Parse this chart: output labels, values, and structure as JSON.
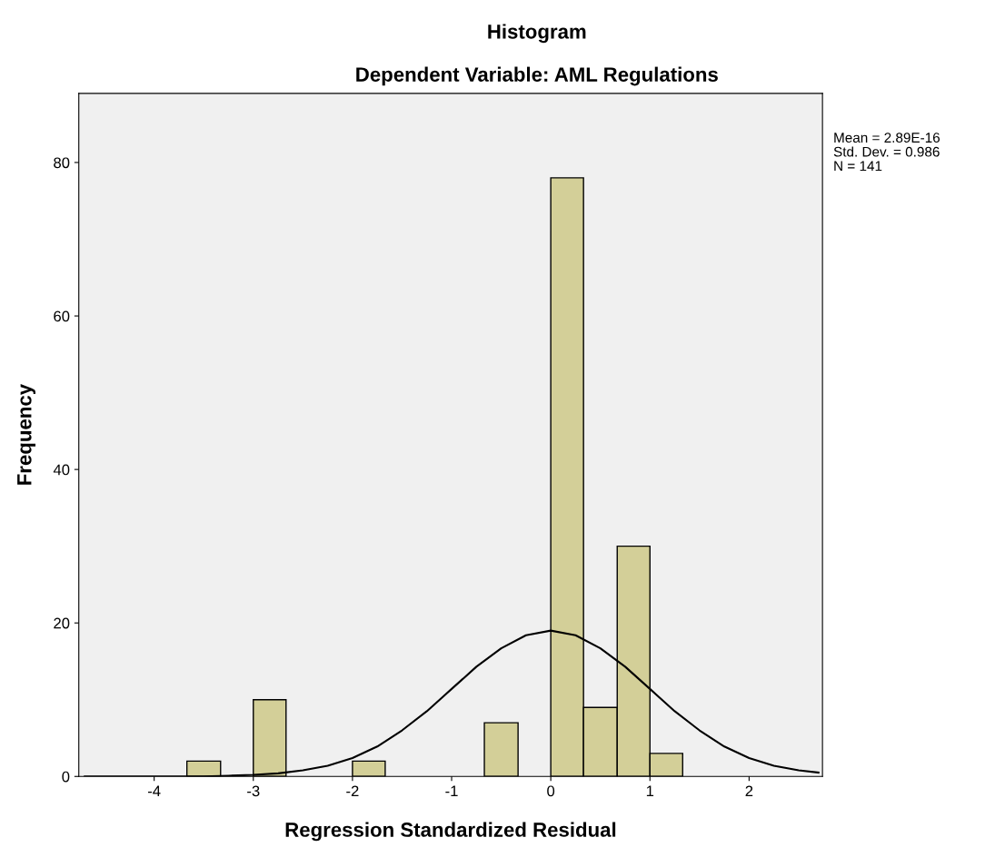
{
  "chart_data": {
    "type": "histogram",
    "title": "Histogram",
    "subtitle": "Dependent Variable: AML Regulations",
    "xlabel": "Regression Standardized Residual",
    "ylabel": "Frequency",
    "bins": [
      -3.67,
      -3.33,
      -3,
      -2.67,
      -2,
      -1.67,
      -0.67,
      -0.33,
      0,
      0.33,
      0.67,
      1,
      1.33
    ],
    "values": [
      2,
      0,
      10,
      0,
      2,
      0,
      7,
      0,
      78,
      9,
      30,
      3
    ],
    "color": "#d3cf98",
    "series": [
      {
        "type": "line",
        "color": "#000000",
        "x": [
          -4.7,
          -4.25,
          -4,
          -3.75,
          -3.5,
          -3.25,
          -3,
          -2.75,
          -2.5,
          -2.25,
          -2,
          -1.75,
          -1.5,
          -1.25,
          -1,
          -0.75,
          -0.5,
          -0.25,
          0,
          0.25,
          0.5,
          0.75,
          1,
          1.25,
          1.5,
          1.75,
          2,
          2.25,
          2.5,
          2.7
        ],
        "values": [
          0,
          0,
          0,
          0,
          0,
          0.1,
          0.2,
          0.4,
          0.8,
          1.4,
          2.4,
          3.9,
          6.0,
          8.5,
          11.4,
          14.3,
          16.7,
          18.4,
          19,
          18.4,
          16.7,
          14.3,
          11.4,
          8.5,
          6.0,
          3.9,
          2.4,
          1.4,
          0.8,
          0.5
        ]
      }
    ],
    "xlim": [
      -4.76,
      2.74
    ],
    "ylim": [
      0,
      89
    ],
    "xticks": [
      -4,
      -3,
      -2,
      -1,
      0,
      1,
      2
    ],
    "yticks": [
      0,
      20,
      40,
      60,
      80
    ],
    "grid": false,
    "legend": false,
    "annotations": [
      "Mean = 2.89E-16",
      "Std. Dev. = 0.986",
      "N = 141"
    ]
  }
}
